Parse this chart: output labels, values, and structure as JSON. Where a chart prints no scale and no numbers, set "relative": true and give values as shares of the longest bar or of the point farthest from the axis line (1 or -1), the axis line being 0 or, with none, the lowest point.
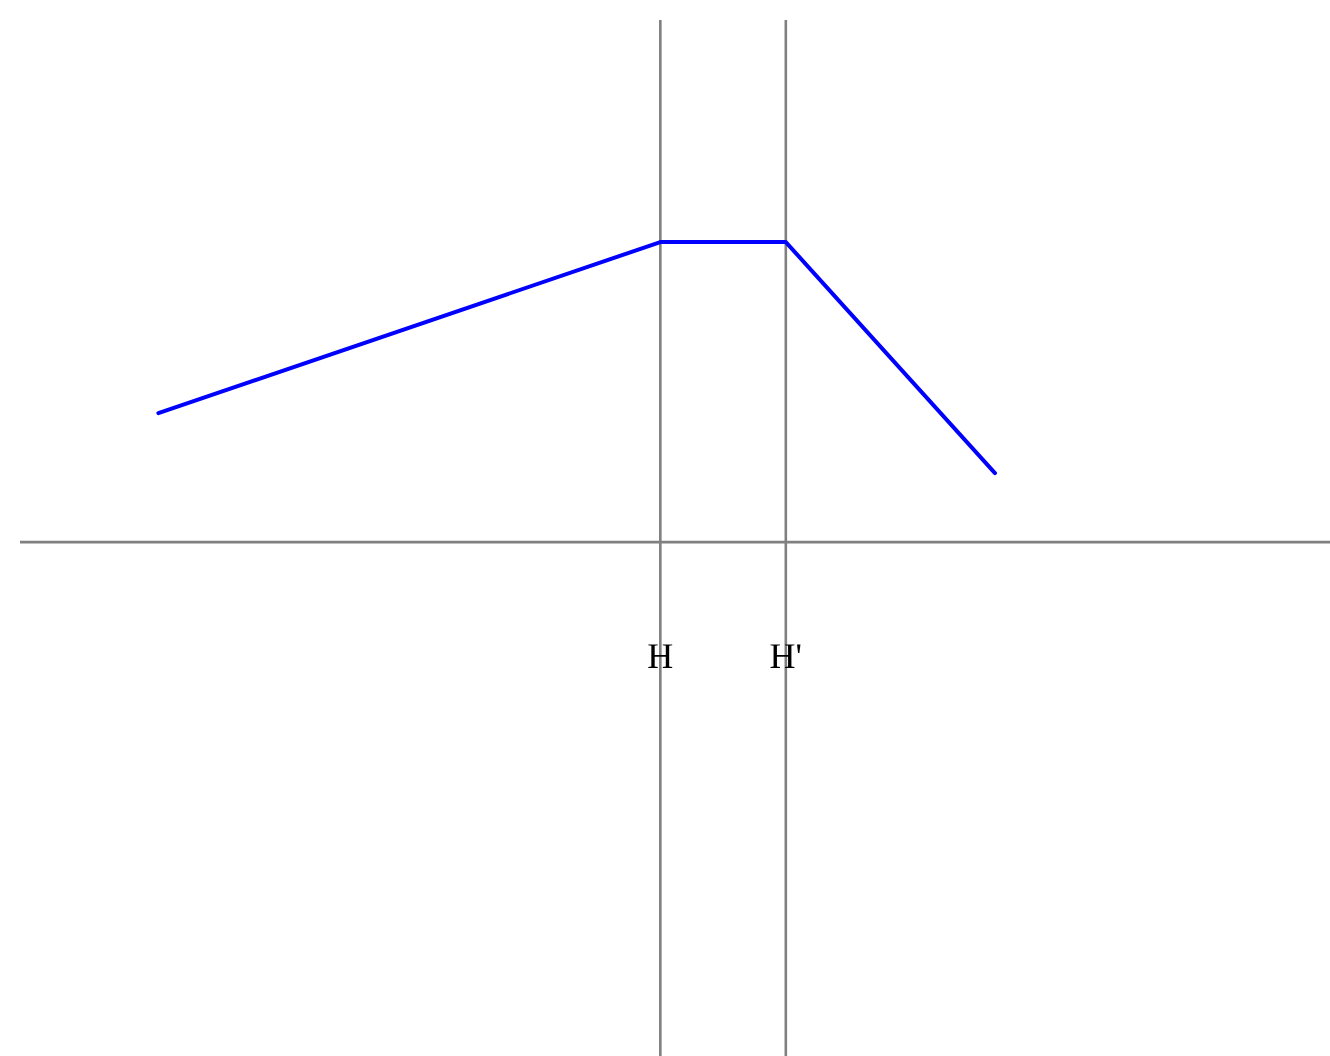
{
  "chart_data": {
    "type": "line",
    "relative": true,
    "categories": [
      null,
      null,
      null,
      null,
      null,
      null,
      null,
      null,
      null,
      null,
      null,
      null,
      "H",
      null,
      null,
      "H'",
      null,
      null,
      null,
      null,
      null
    ],
    "tick_labels": "x",
    "line_style": "solid",
    "series": [
      {
        "color": "#0000ff",
        "values": [
          0.43,
          null,
          null,
          null,
          null,
          null,
          null,
          null,
          null,
          null,
          null,
          null,
          1,
          null,
          null,
          1,
          null,
          null,
          null,
          null,
          0.23
        ]
      }
    ],
    "ref_lines": [
      {
        "axis": "x",
        "value": "H",
        "color": "#808080"
      },
      {
        "axis": "x",
        "value": "H'",
        "color": "#808080"
      }
    ]
  }
}
